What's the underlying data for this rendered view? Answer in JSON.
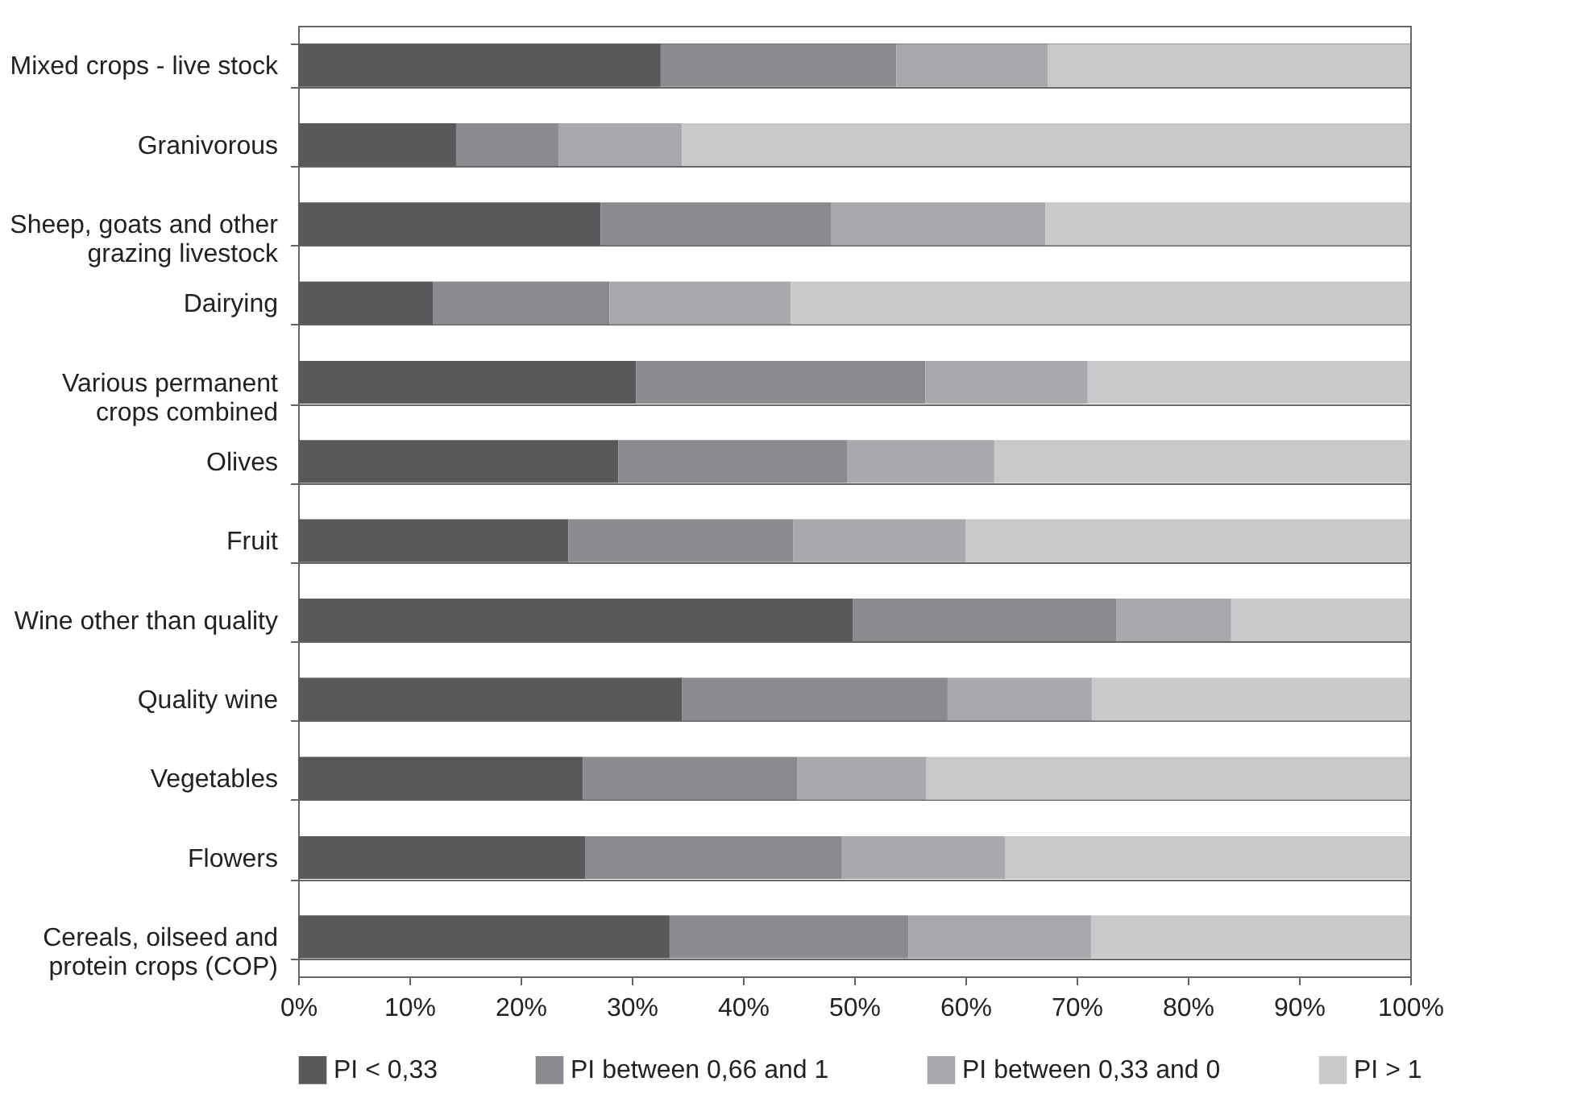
{
  "chart_data": {
    "type": "bar",
    "orientation": "horizontal",
    "stacked": true,
    "categories": [
      "Mixed crops - live stock",
      "Granivorous",
      "Sheep, goats and other grazing livestock",
      "Dairying",
      "Various permanent crops combined",
      "Olives",
      "Fruit",
      "Wine other than quality",
      "Quality wine",
      "Vegetables",
      "Flowers",
      "Cereals, oilseed and protein crops (COP)"
    ],
    "series": [
      {
        "name": "PI < 0,33",
        "color": "#58595b",
        "values": [
          32.6,
          14.2,
          27.2,
          12.1,
          30.4,
          28.8,
          24.3,
          49.9,
          34.5,
          25.6,
          25.8,
          33.4
        ]
      },
      {
        "name": "PI between 0,66 and 1",
        "color": "#8a8b8e",
        "values": [
          21.2,
          9.2,
          20.7,
          15.9,
          26.0,
          20.6,
          20.2,
          23.7,
          23.9,
          19.3,
          23.1,
          21.5
        ]
      },
      {
        "name": "PI between 0,33 and 0",
        "color": "#a8a9ac",
        "values": [
          13.6,
          11.1,
          19.3,
          16.3,
          14.6,
          13.2,
          15.5,
          10.3,
          13.0,
          11.6,
          14.7,
          16.4
        ]
      },
      {
        "name": "PI > 1",
        "color": "#c8c9cb",
        "values": [
          32.6,
          65.5,
          32.8,
          55.7,
          29.0,
          37.4,
          40.0,
          16.1,
          28.6,
          43.5,
          36.4,
          28.7
        ]
      }
    ],
    "xlim": [
      0,
      100
    ],
    "xticks": [
      {
        "value": 0,
        "label": "0%"
      },
      {
        "value": 10,
        "label": "10%"
      },
      {
        "value": 20,
        "label": "20%"
      },
      {
        "value": 30,
        "label": "30%"
      },
      {
        "value": 40,
        "label": "40%"
      },
      {
        "value": 50,
        "label": "50%"
      },
      {
        "value": 60,
        "label": "60%"
      },
      {
        "value": 70,
        "label": "70%"
      },
      {
        "value": 80,
        "label": "80%"
      },
      {
        "value": 90,
        "label": "90%"
      },
      {
        "value": 100,
        "label": "100%"
      }
    ],
    "grid": "y",
    "legend": "bottom"
  }
}
